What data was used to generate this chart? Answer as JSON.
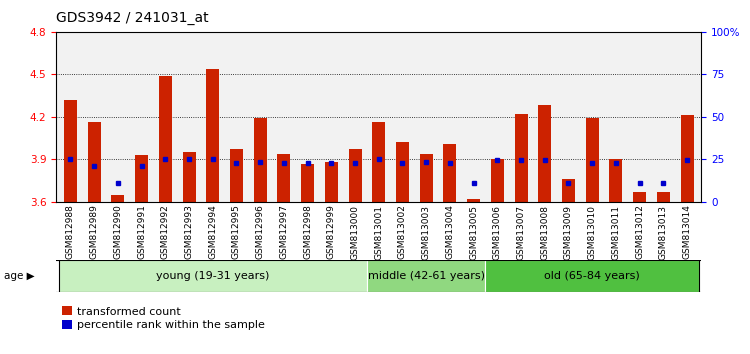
{
  "title": "GDS3942 / 241031_at",
  "samples": [
    "GSM812988",
    "GSM812989",
    "GSM812990",
    "GSM812991",
    "GSM812992",
    "GSM812993",
    "GSM812994",
    "GSM812995",
    "GSM812996",
    "GSM812997",
    "GSM812998",
    "GSM812999",
    "GSM813000",
    "GSM813001",
    "GSM813002",
    "GSM813003",
    "GSM813004",
    "GSM813005",
    "GSM813006",
    "GSM813007",
    "GSM813008",
    "GSM813009",
    "GSM813010",
    "GSM813011",
    "GSM813012",
    "GSM813013",
    "GSM813014"
  ],
  "red_values": [
    4.32,
    4.16,
    3.65,
    3.93,
    4.49,
    3.95,
    4.54,
    3.97,
    4.19,
    3.94,
    3.87,
    3.88,
    3.97,
    4.16,
    4.02,
    3.94,
    4.01,
    3.62,
    3.9,
    4.22,
    4.28,
    3.76,
    4.19,
    3.9,
    3.67,
    3.67,
    4.21
  ],
  "blue_values": [
    3.9,
    3.855,
    3.735,
    3.855,
    3.905,
    3.905,
    3.905,
    3.875,
    3.88,
    3.875,
    3.875,
    3.875,
    3.875,
    3.905,
    3.875,
    3.88,
    3.875,
    3.735,
    3.895,
    3.895,
    3.895,
    3.735,
    3.875,
    3.875,
    3.735,
    3.735,
    3.895
  ],
  "ylim_left": [
    3.6,
    4.8
  ],
  "ylim_right": [
    0,
    100
  ],
  "yticks_left_shown": [
    3.6,
    3.9,
    4.2,
    4.5,
    4.8
  ],
  "yticks_right_shown": [
    0,
    25,
    50,
    75,
    100
  ],
  "ytick_right_labels": [
    "0",
    "25",
    "50",
    "75",
    "100%"
  ],
  "groups": [
    {
      "label": "young (19-31 years)",
      "start": 0,
      "end": 13,
      "color": "#c8f0c0"
    },
    {
      "label": "middle (42-61 years)",
      "start": 13,
      "end": 18,
      "color": "#90d880"
    },
    {
      "label": "old (65-84 years)",
      "start": 18,
      "end": 27,
      "color": "#50c040"
    }
  ],
  "bar_color": "#cc2200",
  "dot_color": "#0000cc",
  "bar_width": 0.55,
  "baseline": 3.6,
  "legend_red": "transformed count",
  "legend_blue": "percentile rank within the sample",
  "title_fontsize": 10,
  "tick_fontsize": 7.5,
  "xlabel_fontsize": 6.5
}
